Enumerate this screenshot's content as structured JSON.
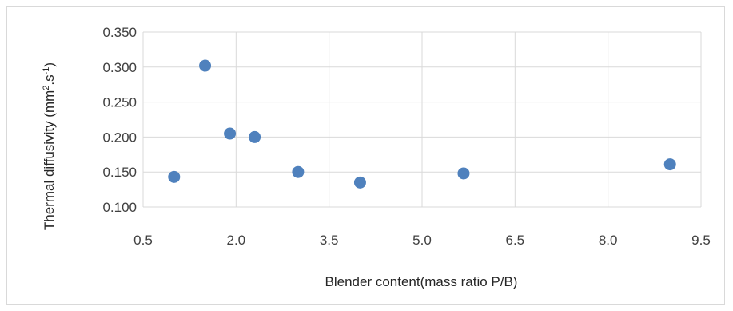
{
  "chart_data": {
    "type": "scatter",
    "xlabel": "Blender content(mass ratio P/B)",
    "ylabel_main": "Thermal diffusivity (mm",
    "ylabel_sup1": "2",
    "ylabel_mid": ".s",
    "ylabel_sup2": "-1",
    "ylabel_end": ")",
    "xlim": [
      0.5,
      9.5
    ],
    "ylim": [
      0.1,
      0.35
    ],
    "x_ticks": [
      0.5,
      2.0,
      3.5,
      5.0,
      6.5,
      8.0,
      9.5
    ],
    "x_tick_labels": [
      "0.5",
      "2.0",
      "3.5",
      "5.0",
      "6.5",
      "8.0",
      "9.5"
    ],
    "y_ticks": [
      0.1,
      0.15,
      0.2,
      0.25,
      0.3,
      0.35
    ],
    "y_tick_labels": [
      "0.100",
      "0.150",
      "0.200",
      "0.250",
      "0.300",
      "0.350"
    ],
    "grid": true,
    "marker_color": "#4f81bd",
    "series": [
      {
        "points": [
          {
            "x": 1.0,
            "y": 0.143
          },
          {
            "x": 1.5,
            "y": 0.302
          },
          {
            "x": 1.9,
            "y": 0.205
          },
          {
            "x": 2.3,
            "y": 0.2
          },
          {
            "x": 3.0,
            "y": 0.15
          },
          {
            "x": 4.0,
            "y": 0.135
          },
          {
            "x": 5.67,
            "y": 0.148
          },
          {
            "x": 9.0,
            "y": 0.161
          }
        ]
      }
    ]
  }
}
